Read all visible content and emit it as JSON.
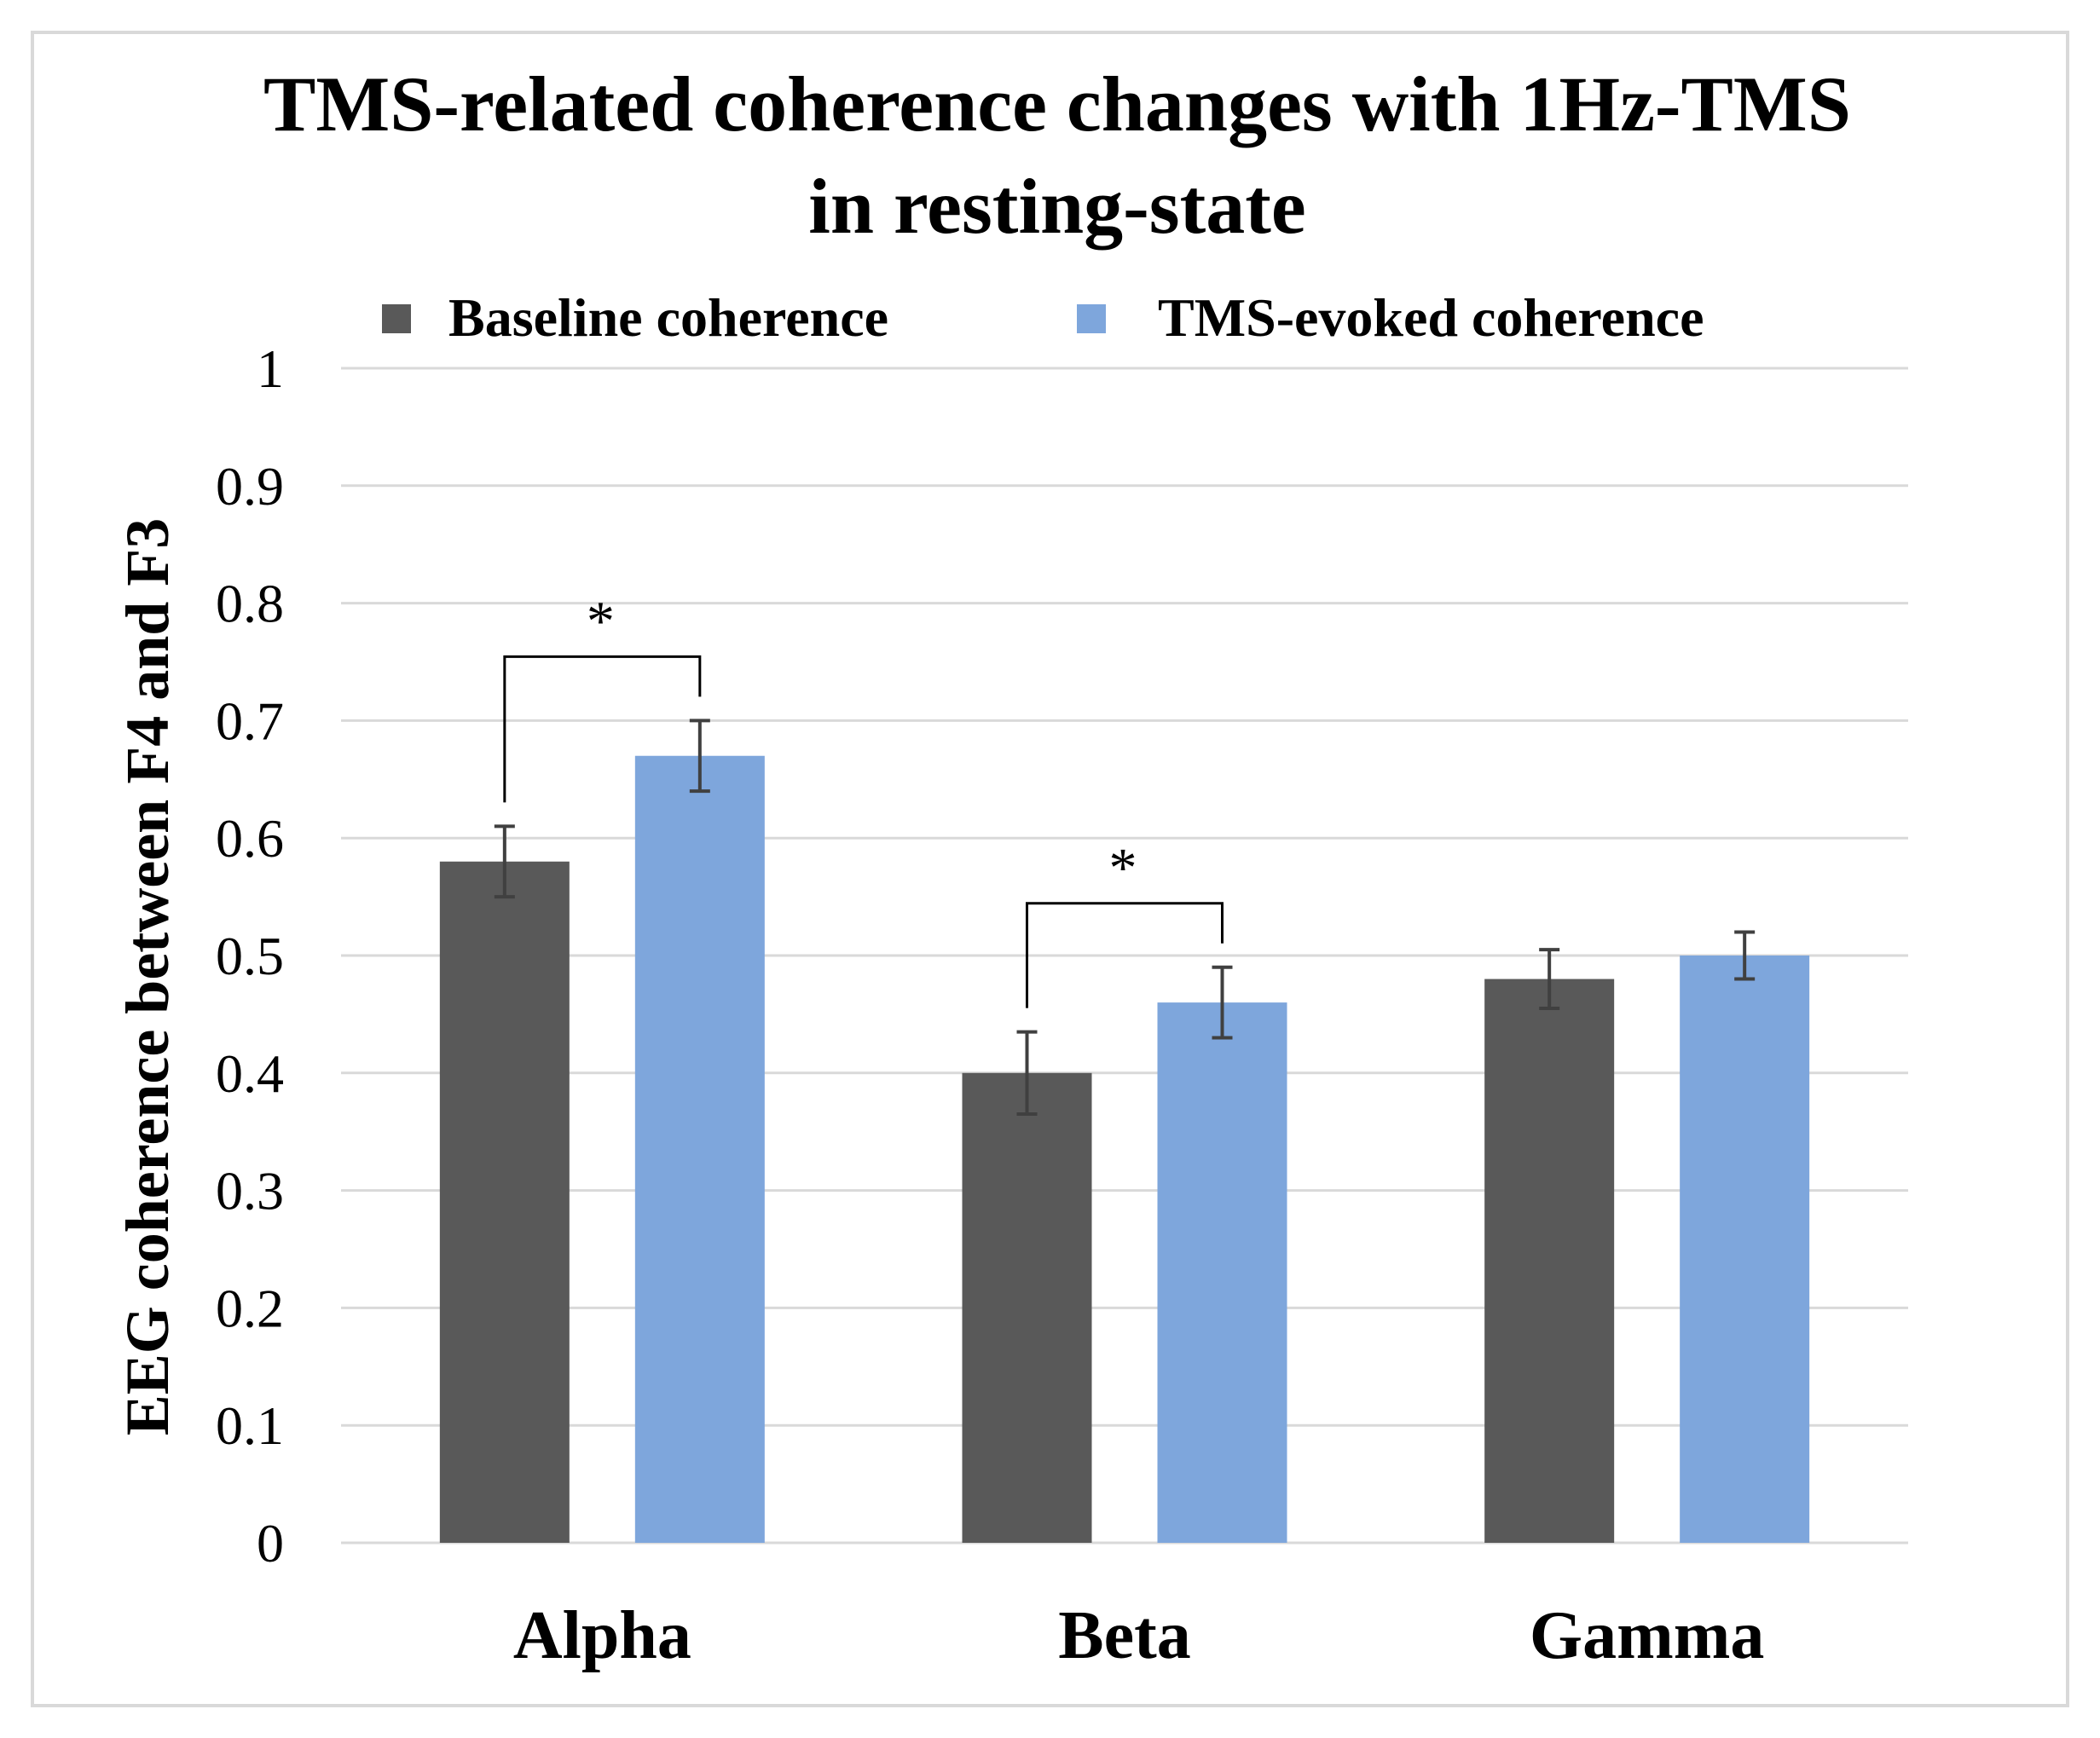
{
  "chart_data": {
    "type": "bar",
    "title_lines": [
      "TMS-related coherence changes with 1Hz-TMS",
      "in resting-state"
    ],
    "ylabel": "EEG coherence between F4 and F3",
    "xlabel": "",
    "categories": [
      "Alpha",
      "Beta",
      "Gamma"
    ],
    "ylim": [
      0,
      1
    ],
    "yticks": [
      "0",
      "0.1",
      "0.2",
      "0.3",
      "0.4",
      "0.5",
      "0.6",
      "0.7",
      "0.8",
      "0.9",
      "1"
    ],
    "grid": true,
    "legend_position": "top",
    "series": [
      {
        "name": "Baseline coherence",
        "color": "#595959",
        "values": [
          0.58,
          0.4,
          0.48
        ],
        "errors": [
          0.03,
          0.035,
          0.025
        ]
      },
      {
        "name": "TMS-evoked coherence",
        "color": "#7ea6dc",
        "values": [
          0.67,
          0.46,
          0.5
        ],
        "errors": [
          0.03,
          0.03,
          0.02
        ]
      }
    ],
    "significance": [
      {
        "category": "Alpha",
        "label": "*"
      },
      {
        "category": "Beta",
        "label": "*"
      }
    ]
  }
}
